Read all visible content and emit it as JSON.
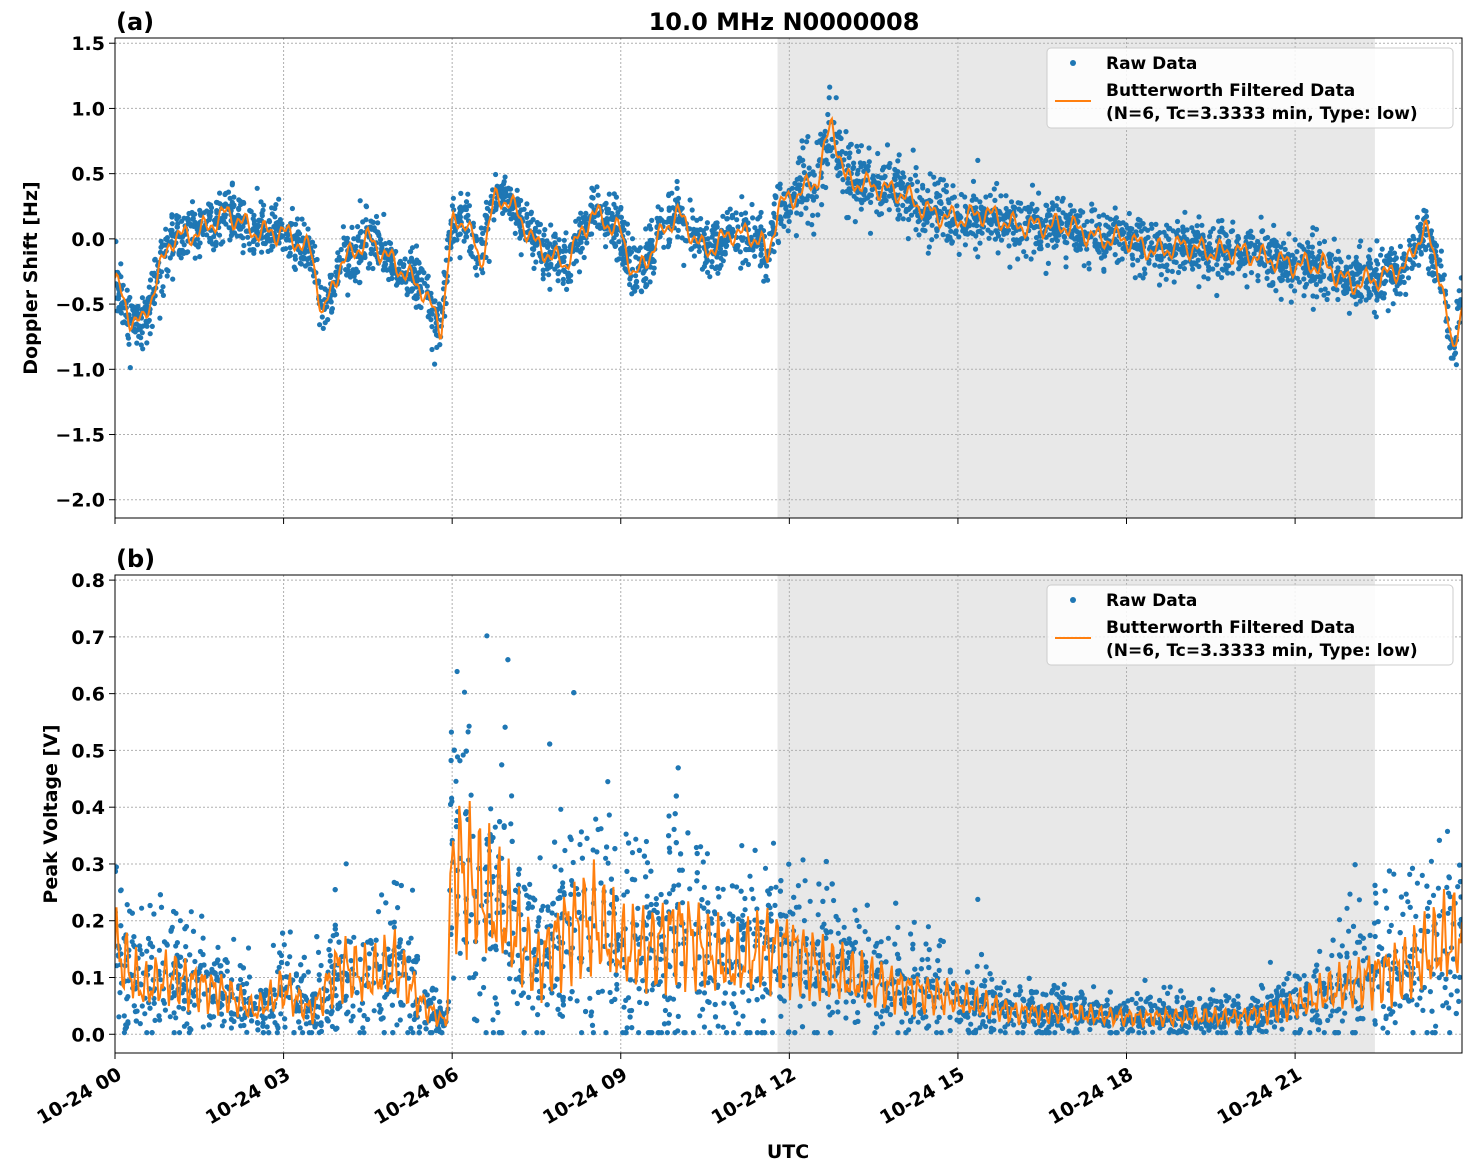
{
  "chart_data": [
    {
      "type": "scatter",
      "panel_label": "(a)",
      "title": "10.0 MHz N0000008",
      "xlabel": "",
      "ylabel": "Doppler Shift [Hz]",
      "xlim_hours": [
        0,
        23.97
      ],
      "ylim": [
        -2.14,
        1.54
      ],
      "yticks": [
        "1.5",
        "1.0",
        "0.5",
        "0.0",
        "−0.5",
        "−1.0",
        "−1.5",
        "−2.0"
      ],
      "ytick_values": [
        1.5,
        1.0,
        0.5,
        0.0,
        -0.5,
        -1.0,
        -1.5,
        -2.0
      ],
      "grid": true,
      "shaded_region_hours": [
        11.79,
        22.42
      ],
      "legend_position": "top-right",
      "series": [
        {
          "name": "Raw Data",
          "kind": "scatter",
          "color": "#1f77b4",
          "spread": 0.22
        },
        {
          "name": "Butterworth Filtered Data",
          "name_line2": "(N=6, Tc=3.3333 min, Type: low)",
          "kind": "line",
          "color": "#ff7f0e",
          "x": [
            0,
            0.25,
            0.5,
            0.75,
            1,
            1.5,
            2,
            2.5,
            3,
            3.5,
            3.7,
            4,
            4.5,
            5,
            5.5,
            5.8,
            6,
            6.25,
            6.5,
            6.75,
            7,
            7.5,
            8,
            8.5,
            9,
            9.25,
            9.75,
            10,
            10.5,
            11,
            11.5,
            11.6,
            11.8,
            12,
            12.5,
            12.75,
            13,
            13.5,
            14,
            14.5,
            15,
            15.5,
            16,
            17,
            17.5,
            18,
            18.5,
            19,
            19.5,
            20,
            20.5,
            21,
            21.5,
            22,
            22.5,
            23,
            23.3,
            23.6,
            23.8,
            23.97
          ],
          "y": [
            -0.3,
            -0.6,
            -0.65,
            -0.3,
            0.0,
            0.05,
            0.2,
            0.05,
            0.05,
            -0.1,
            -0.6,
            -0.2,
            0.0,
            -0.2,
            -0.4,
            -0.7,
            0.1,
            0.15,
            -0.2,
            0.3,
            0.3,
            -0.05,
            -0.2,
            0.2,
            0.05,
            -0.3,
            0.05,
            0.2,
            -0.1,
            0.05,
            0.0,
            -0.2,
            0.25,
            0.3,
            0.45,
            0.9,
            0.45,
            0.4,
            0.35,
            0.2,
            0.15,
            0.2,
            0.1,
            0.1,
            0.0,
            0.0,
            -0.1,
            -0.05,
            -0.1,
            -0.1,
            -0.15,
            -0.2,
            -0.2,
            -0.35,
            -0.3,
            -0.2,
            0.1,
            -0.3,
            -0.9,
            -0.5
          ]
        }
      ]
    },
    {
      "type": "scatter",
      "panel_label": "(b)",
      "xlabel": "UTC",
      "ylabel": "Peak Voltage [V]",
      "xlim_hours": [
        0,
        23.97
      ],
      "ylim": [
        -0.033,
        0.809
      ],
      "yticks": [
        "0.8",
        "0.7",
        "0.6",
        "0.5",
        "0.4",
        "0.3",
        "0.2",
        "0.1",
        "0.0"
      ],
      "ytick_values": [
        0.8,
        0.7,
        0.6,
        0.5,
        0.4,
        0.3,
        0.2,
        0.1,
        0.0
      ],
      "xticks": [
        "10-24 00",
        "10-24 03",
        "10-24 06",
        "10-24 09",
        "10-24 12",
        "10-24 15",
        "10-24 18",
        "10-24 21"
      ],
      "xtick_hours": [
        0,
        3,
        6,
        9,
        12,
        15,
        18,
        21
      ],
      "grid": true,
      "shaded_region_hours": [
        11.79,
        22.42
      ],
      "legend_position": "top-right",
      "series": [
        {
          "name": "Raw Data",
          "kind": "scatter",
          "color": "#1f77b4",
          "spread": 0.6
        },
        {
          "name": "Butterworth Filtered Data",
          "name_line2": "(N=6, Tc=3.3333 min, Type: low)",
          "kind": "line",
          "color": "#ff7f0e",
          "x": [
            0,
            0.5,
            1,
            2,
            2.5,
            3,
            3.5,
            4,
            4.5,
            5,
            5.5,
            5.9,
            6,
            6.5,
            7,
            7.5,
            8,
            8.5,
            9,
            9.5,
            10,
            10.5,
            11,
            11.5,
            12,
            12.5,
            13,
            14,
            15,
            16,
            17,
            18,
            19,
            20,
            21,
            21.5,
            22,
            23,
            23.97
          ],
          "y": [
            0.15,
            0.08,
            0.1,
            0.07,
            0.04,
            0.08,
            0.04,
            0.12,
            0.1,
            0.12,
            0.05,
            0.02,
            0.3,
            0.25,
            0.2,
            0.12,
            0.18,
            0.2,
            0.15,
            0.15,
            0.18,
            0.15,
            0.12,
            0.15,
            0.15,
            0.12,
            0.1,
            0.08,
            0.06,
            0.04,
            0.035,
            0.03,
            0.03,
            0.03,
            0.05,
            0.07,
            0.09,
            0.12,
            0.18
          ]
        }
      ]
    }
  ]
}
